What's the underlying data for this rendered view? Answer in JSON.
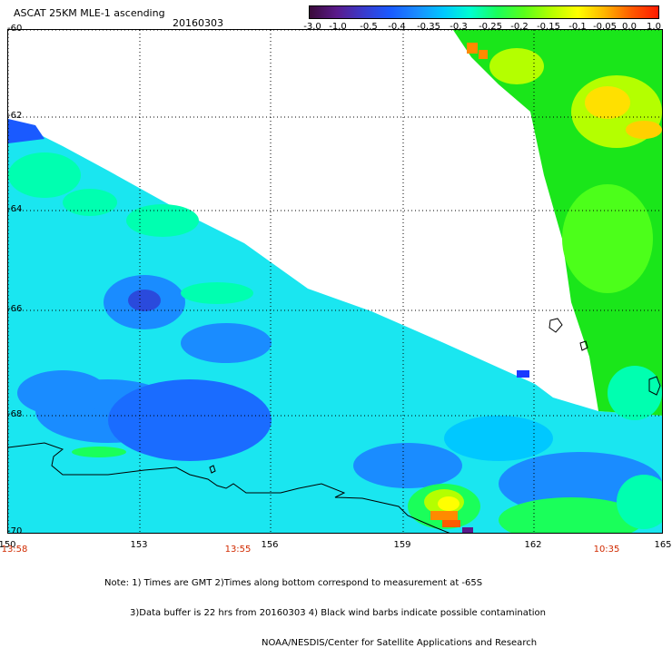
{
  "header": {
    "title": "ASCAT 25KM MLE-1 ascending",
    "date": "20160303"
  },
  "colorbar": {
    "labels": [
      "-3.0",
      "-1.0",
      "-0.5",
      "-0.4",
      "-0.35",
      "-0.3",
      "-0.25",
      "-0.2",
      "-0.15",
      "-0.1",
      "-0.05",
      "0.0",
      "1.0"
    ],
    "colors": [
      "#3a0a3a",
      "#5a1a8a",
      "#3a3acc",
      "#1a5aff",
      "#1a8cff",
      "#00c8ff",
      "#00ffd0",
      "#1aff5a",
      "#5aff1a",
      "#b4ff00",
      "#ffff00",
      "#ffb400",
      "#ff5a00",
      "#ff1a00"
    ]
  },
  "axes": {
    "lat_labels": [
      "-60",
      "-62",
      "-64",
      "-66",
      "-68",
      "-70"
    ],
    "lon_labels": [
      "150",
      "153",
      "156",
      "159",
      "162",
      "165"
    ]
  },
  "time_labels": [
    "13:58",
    "13:55",
    "10:35"
  ],
  "notes": [
    "Note: 1) Times are GMT 2)Times along bottom correspond to measurement at -65S",
    "3)Data buffer is 22 hrs from 20160303 4) Black wind barbs indicate possible contamination",
    "NOAA/NESDIS/Center for Satellite Applications and Research"
  ],
  "colors": {
    "time_label": "#d12a00",
    "grid": "#000000",
    "coastline": "#000000"
  }
}
